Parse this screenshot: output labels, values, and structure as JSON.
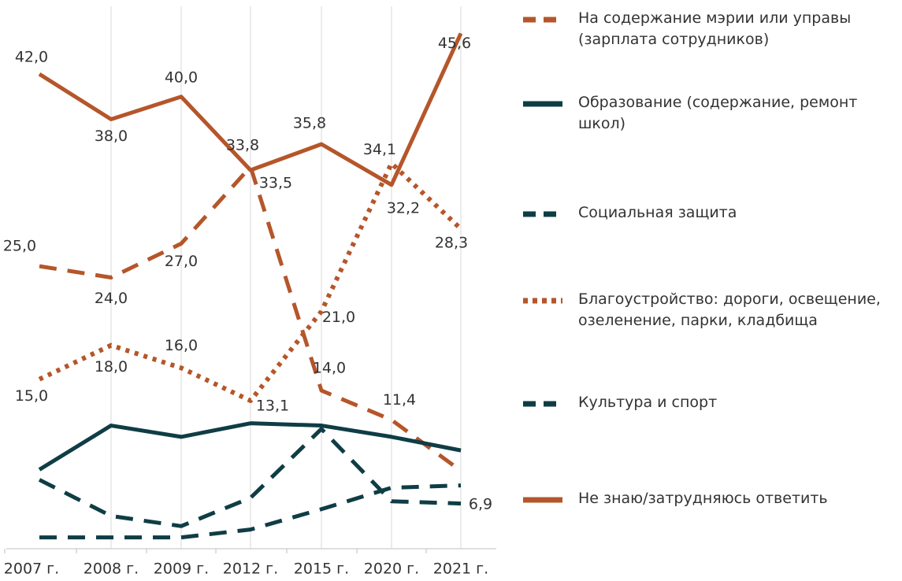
{
  "chart_data": {
    "type": "line",
    "categories": [
      "2007 г.",
      "2008 г.",
      "2009 г.",
      "2012 г.",
      "2015 г.",
      "2020 г.",
      "2021 г."
    ],
    "ylim": [
      0,
      48
    ],
    "grid": true,
    "legend": "right",
    "series": [
      {
        "name": "На содержание мэрии или управы (зарплата сотрудников)",
        "color": "#b5562a",
        "style": "dashed",
        "values": [
          25.0,
          24.0,
          27.0,
          33.8,
          14.0,
          11.4,
          6.9
        ],
        "value_labels": [
          "25,0",
          "24,0",
          "27,0",
          "33,8",
          "14,0",
          "11,4",
          "6,9"
        ]
      },
      {
        "name": "Образование (содержание, ремонт школ)",
        "color": "#0f3d45",
        "style": "solid",
        "values": [
          7.0,
          10.9,
          9.9,
          11.1,
          10.9,
          9.9,
          8.7
        ]
      },
      {
        "name": "Социальная защита",
        "color": "#0f3d45",
        "style": "dashed",
        "values": [
          6.1,
          2.9,
          2.0,
          4.5,
          10.6,
          4.2,
          4.0
        ]
      },
      {
        "name": "Благоустройство: дороги, освеще­ние, озеленение, парки, кладбища",
        "color": "#b5562a",
        "style": "dotted",
        "values": [
          15.0,
          18.0,
          16.0,
          13.1,
          21.0,
          34.1,
          28.3
        ],
        "value_labels": [
          "15,0",
          "18,0",
          "16,0",
          "13,1",
          "21,0",
          "34,1",
          "28,3"
        ]
      },
      {
        "name": "Культура и спорт",
        "color": "#0f3d45",
        "style": "dashed",
        "values": [
          1.0,
          1.0,
          1.0,
          1.7,
          3.5,
          5.4,
          5.6
        ]
      },
      {
        "name": "Не знаю/затрудняюсь ответить",
        "color": "#b5562a",
        "style": "solid",
        "values": [
          42.0,
          38.0,
          40.0,
          33.5,
          35.8,
          32.2,
          45.6
        ],
        "value_labels": [
          "42,0",
          "38,0",
          "40,0",
          "33,5",
          "35,8",
          "32,2",
          "45,6"
        ]
      }
    ]
  }
}
